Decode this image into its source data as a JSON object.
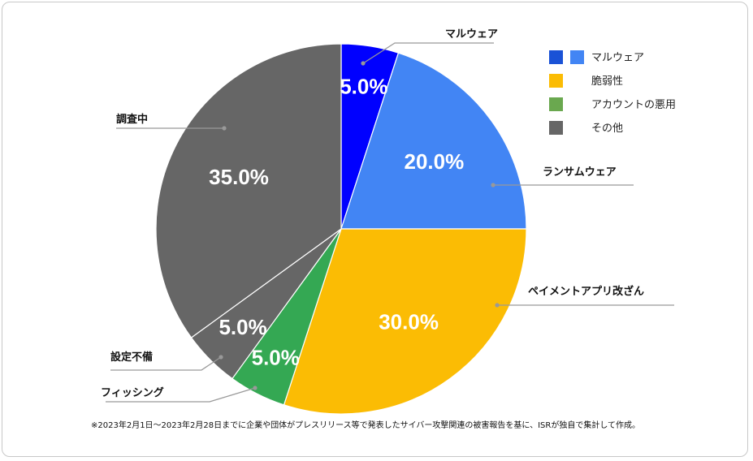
{
  "chart_data": {
    "type": "pie",
    "slices": [
      {
        "label": "マルウェア",
        "value": 5.0,
        "value_label": "5.0%",
        "color": "#0000ff"
      },
      {
        "label": "ランサムウェア",
        "value": 20.0,
        "value_label": "20.0%",
        "color": "#4285f4"
      },
      {
        "label": "ペイメントアプリ改ざん",
        "value": 30.0,
        "value_label": "30.0%",
        "color": "#fbbc04"
      },
      {
        "label": "フィッシング",
        "value": 5.0,
        "value_label": "5.0%",
        "color": "#34a853"
      },
      {
        "label": "設定不備",
        "value": 5.0,
        "value_label": "5.0%",
        "color": "#666666"
      },
      {
        "label": "調査中",
        "value": 35.0,
        "value_label": "35.0%",
        "color": "#666666"
      }
    ],
    "legend": {
      "placement": "top-right",
      "entries": [
        {
          "label": "マルウェア",
          "colors": [
            "#1a52d6",
            "#4285f4"
          ]
        },
        {
          "label": "脆弱性",
          "colors": [
            "#fbbc04"
          ]
        },
        {
          "label": "アカウントの悪用",
          "colors": [
            "#6aa84f"
          ]
        },
        {
          "label": "その他",
          "colors": [
            "#666666"
          ]
        }
      ]
    },
    "footnote": "※2023年2月1日～2023年2月28日までに企業や団体がプレスリリース等で発表したサイバー攻撃関連の被害報告を基に、ISRが独自で集計して作成。"
  }
}
